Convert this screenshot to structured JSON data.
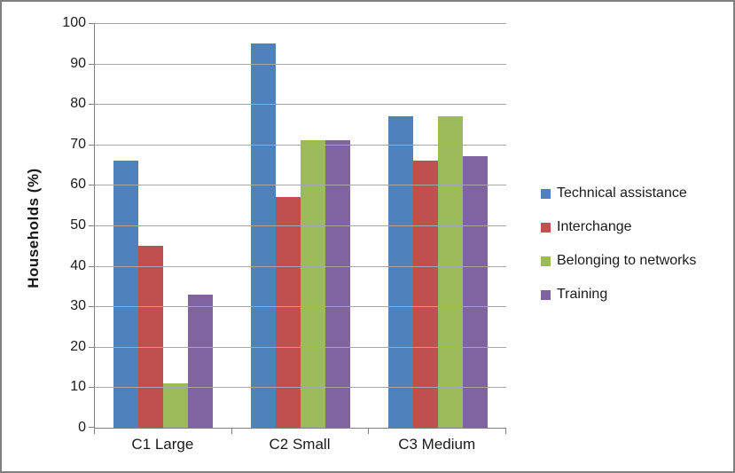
{
  "frame": {
    "background": "#FFFFFF",
    "border_color": "#7F7F7F"
  },
  "chart_data": {
    "type": "bar",
    "title": "",
    "xlabel": "",
    "ylabel": "Households (%)",
    "ylim": [
      0,
      100
    ],
    "yticks": [
      0,
      10,
      20,
      30,
      40,
      50,
      60,
      70,
      80,
      90,
      100
    ],
    "grid": true,
    "legend_position": "right",
    "axis_color": "#808080",
    "gridline_color": "#A6A6A6",
    "categories": [
      "C1 Large",
      "C2 Small",
      "C3 Medium"
    ],
    "series": [
      {
        "name": "Technical assistance",
        "color": "#4F81BD",
        "values": [
          66,
          95,
          77
        ]
      },
      {
        "name": "Interchange",
        "color": "#C0504D",
        "values": [
          45,
          57,
          66
        ]
      },
      {
        "name": "Belonging to networks",
        "color": "#9BBB59",
        "values": [
          11,
          71,
          77
        ]
      },
      {
        "name": "Training",
        "color": "#8064A2",
        "values": [
          33,
          71,
          67
        ]
      }
    ]
  }
}
